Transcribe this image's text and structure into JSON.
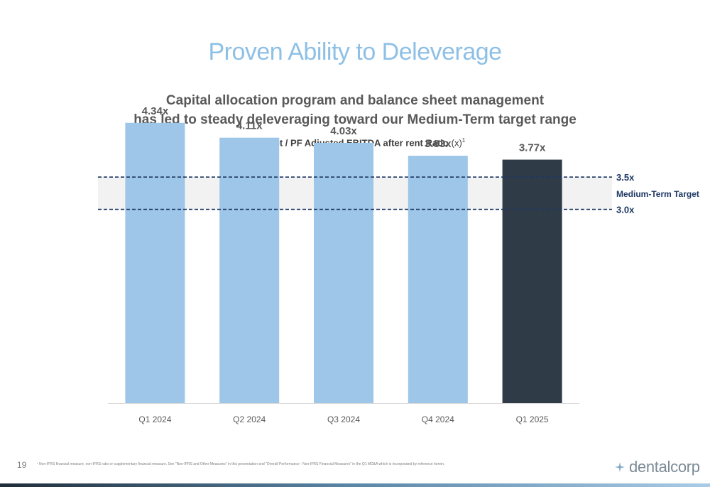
{
  "slide": {
    "title": "Proven Ability to Deleverage",
    "subtitle_line1": "Capital allocation program and balance sheet management",
    "subtitle_line2": "has led to steady deleveraging toward our Medium-Term target range",
    "chart_title_bold": "Net Debt / PF Adjusted EBITDA after rent Ratio",
    "chart_title_unit": "(x)",
    "chart_title_sup": "1",
    "page_number": "19",
    "footnote": "¹ Non-IFRS financial measure, non-IFRS ratio or supplementary financial measure. See \"Non-IFRS and Other Measures\" in this presentation and \"Overall Performance - Non-IFRS Financial Measures\" in the Q1 MD&A which is incorporated by reference herein.",
    "logo_text": "dentalcorp"
  },
  "colors": {
    "title": "#8ec0e6",
    "bar_light": "#9dc6e8",
    "bar_dark": "#2f3b46",
    "target_band": "#f2f2f2",
    "target_line": "#1f3864",
    "target_label": "#1f3864"
  },
  "chart_data": {
    "type": "bar",
    "categories": [
      "Q1 2024",
      "Q2 2024",
      "Q3 2024",
      "Q4 2024",
      "Q1 2025"
    ],
    "values": [
      4.34,
      4.11,
      4.03,
      3.83,
      3.77
    ],
    "value_labels": [
      "4.34x",
      "4.11x",
      "4.03x",
      "3.83x",
      "3.77x"
    ],
    "highlight_index": 4,
    "title": "Net Debt / PF Adjusted EBITDA after rent Ratio (x)",
    "xlabel": "",
    "ylabel": "",
    "ylim": [
      0,
      4.8
    ],
    "grid": false,
    "target_range": {
      "low": 3.0,
      "high": 3.5,
      "low_label": "3.0x",
      "high_label": "3.5x",
      "label": "Medium-Term Target"
    }
  }
}
